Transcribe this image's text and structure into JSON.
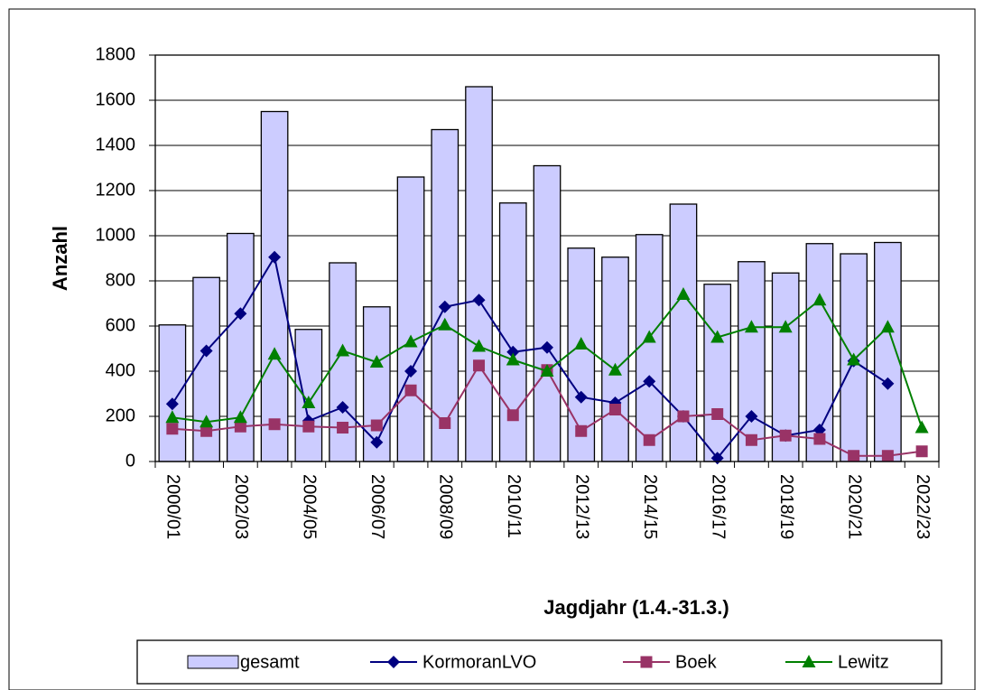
{
  "chart_data": {
    "type": "combo",
    "x_label": "Jagdjahr (1.4.-31.3.)",
    "y_label": "Anzahl",
    "categories": [
      "2000/01",
      null,
      "2002/03",
      null,
      "2004/05",
      null,
      "2006/07",
      null,
      "2008/09",
      null,
      "2010/11",
      null,
      "2012/13",
      null,
      "2014/15",
      null,
      "2016/17",
      null,
      "2018/19",
      null,
      "2020/21",
      null,
      "2022/23"
    ],
    "series": [
      {
        "name": "gesamt",
        "type": "bar",
        "color": "#ccccff",
        "values": [
          605,
          815,
          1010,
          1550,
          585,
          880,
          685,
          1260,
          1470,
          1660,
          1145,
          1310,
          945,
          905,
          1005,
          1140,
          785,
          885,
          835,
          965,
          920,
          970,
          null
        ]
      },
      {
        "name": "KormoranLVO",
        "type": "line",
        "marker": "diamond",
        "color": "#000080",
        "values": [
          255,
          490,
          655,
          905,
          180,
          240,
          85,
          400,
          685,
          715,
          485,
          505,
          285,
          260,
          355,
          200,
          15,
          200,
          115,
          140,
          445,
          345,
          null
        ]
      },
      {
        "name": "Boek",
        "type": "line",
        "marker": "square",
        "color": "#993366",
        "values": [
          145,
          135,
          155,
          165,
          155,
          150,
          160,
          315,
          170,
          425,
          205,
          405,
          135,
          230,
          95,
          200,
          210,
          95,
          115,
          100,
          25,
          25,
          45
        ]
      },
      {
        "name": "Lewitz",
        "type": "line",
        "marker": "triangle",
        "color": "#008000",
        "values": [
          195,
          175,
          195,
          475,
          260,
          490,
          440,
          530,
          605,
          510,
          450,
          400,
          520,
          405,
          550,
          740,
          550,
          595,
          595,
          715,
          450,
          595,
          150
        ]
      }
    ],
    "ylim": [
      0,
      1800
    ],
    "yticks": [
      0,
      200,
      400,
      600,
      800,
      1000,
      1200,
      1400,
      1600,
      1800
    ],
    "grid": true,
    "legend": "bottom"
  }
}
